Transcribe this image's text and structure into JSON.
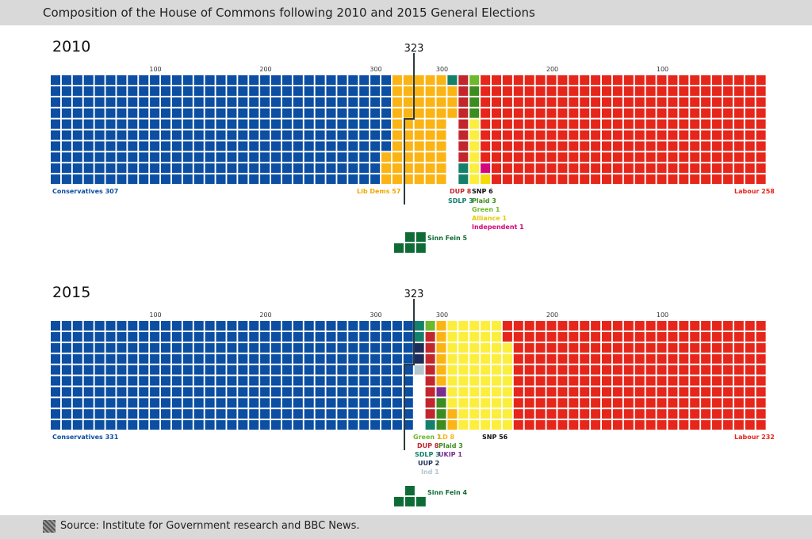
{
  "title": "Composition of the House of Commons following 2010 and 2015 General Elections",
  "source": "Source: Institute for Government research and BBC News.",
  "majority_label": "323",
  "ticks_left": [
    "100",
    "200",
    "300"
  ],
  "ticks_right": [
    "300",
    "200",
    "100"
  ],
  "colors": {
    "Conservatives": "#0b4ea2",
    "Lib Dems": "#fbb414",
    "Labour": "#e6261b",
    "SNP": "#fbee3d",
    "DUP": "#c2262c",
    "SDLP": "#13806b",
    "Plaid": "#3d8c20",
    "Green": "#6db82b",
    "Alliance": "#f4d90b",
    "Independent": "#d1077b",
    "UKIP": "#7b2c90",
    "UUP": "#1c2d5b",
    "Ind": "#b3c6cf",
    "Sinn Fein": "#0f6b35"
  },
  "elections": [
    {
      "year": "2010",
      "left": [
        {
          "party": "Conservatives",
          "seats": 307
        },
        {
          "party": "Lib Dems",
          "seats": 57
        }
      ],
      "right": [
        {
          "party": "Labour",
          "seats": 258
        },
        {
          "party": "Independent",
          "seats": 1
        },
        {
          "party": "Alliance",
          "seats": 1
        },
        {
          "party": "Green",
          "seats": 1
        },
        {
          "party": "Plaid",
          "seats": 3
        },
        {
          "party": "SNP",
          "seats": 6
        },
        {
          "party": "DUP",
          "seats": 8
        },
        {
          "party": "SDLP",
          "seats": 3
        }
      ],
      "sinn_fein": 5,
      "labels": {
        "con": "Conservatives 307",
        "ld": "Lib Dems 57",
        "lab": "Labour 258",
        "dup": "DUP 8",
        "sdlp": "SDLP 3",
        "snp": "SNP 6",
        "plaid": "Plaid 3",
        "green": "Green 1",
        "alliance": "Alliance 1",
        "ind": "Independent 1",
        "sf": "Sinn Fein 5"
      }
    },
    {
      "year": "2015",
      "left": [
        {
          "party": "Conservatives",
          "seats": 331
        }
      ],
      "right": [
        {
          "party": "Labour",
          "seats": 232
        },
        {
          "party": "SNP",
          "seats": 56
        },
        {
          "party": "Lib Dems",
          "seats": 8
        },
        {
          "party": "UKIP",
          "seats": 1
        },
        {
          "party": "Plaid",
          "seats": 3
        },
        {
          "party": "Green",
          "seats": 1
        },
        {
          "party": "DUP",
          "seats": 8
        },
        {
          "party": "SDLP",
          "seats": 3
        },
        {
          "party": "UUP",
          "seats": 2
        },
        {
          "party": "Ind",
          "seats": 1
        }
      ],
      "sinn_fein": 4,
      "labels": {
        "con": "Conservatives 331",
        "lab": "Labour 232",
        "snp": "SNP 56",
        "green": "Green 1",
        "ld": "LD 8",
        "dup": "DUP 8",
        "plaid": "Plaid 3",
        "sdlp": "SDLP 3",
        "ukip": "UKIP 1",
        "uup": "UUP 2",
        "ind": "Ind 1",
        "sf": "Sinn Fein 4"
      }
    }
  ]
}
